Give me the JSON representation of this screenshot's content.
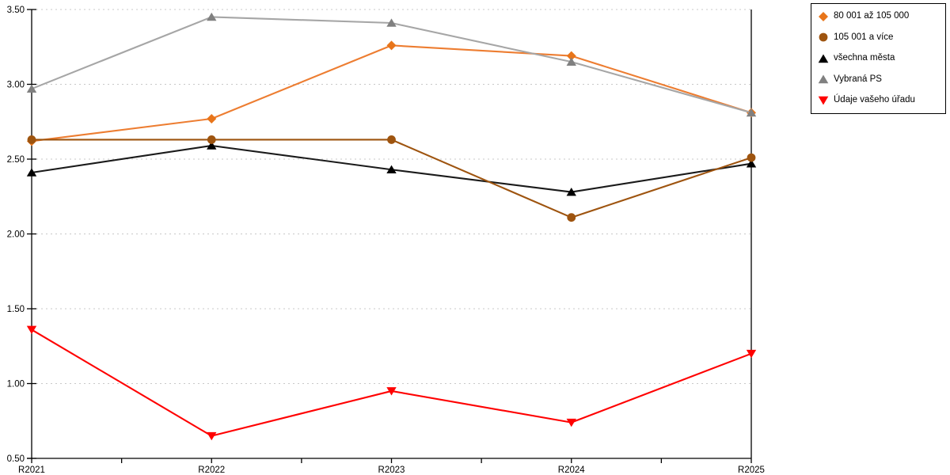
{
  "chart_data": {
    "type": "line",
    "categories": [
      "R2021",
      "R2022",
      "R2023",
      "R2024",
      "R2025"
    ],
    "series": [
      {
        "name": "80 001 až 105 000",
        "color": "#ED7D31",
        "marker_color": "#E8751A",
        "marker": "diamond",
        "values": [
          2.62,
          2.77,
          3.26,
          3.19,
          2.81
        ]
      },
      {
        "name": "105 001 a více",
        "color": "#9E540F",
        "marker_color": "#9E540F",
        "marker": "circle",
        "values": [
          2.63,
          2.63,
          2.63,
          2.11,
          2.51
        ]
      },
      {
        "name": "všechna města",
        "color": "#1A1A1A",
        "marker_color": "#000000",
        "marker": "triangle-up",
        "values": [
          2.41,
          2.59,
          2.43,
          2.28,
          2.47
        ]
      },
      {
        "name": "Vybraná PS",
        "color": "#A6A6A6",
        "marker_color": "#808080",
        "marker": "triangle-up",
        "values": [
          2.97,
          3.45,
          3.41,
          3.15,
          2.81
        ]
      },
      {
        "name": "Údaje vašeho úřadu",
        "color": "#FF0000",
        "marker_color": "#FF0000",
        "marker": "triangle-down",
        "values": [
          1.36,
          0.65,
          0.95,
          0.74,
          1.2
        ]
      }
    ],
    "y_axis": {
      "min": 0.5,
      "max": 3.5,
      "step": 0.5,
      "tick_labels": [
        "0.50",
        "1.00",
        "1.50",
        "2.00",
        "2.50",
        "3.00",
        "3.50"
      ]
    },
    "x_axis": {
      "tick_labels": [
        "R2021",
        "R2022",
        "R2023",
        "R2024",
        "R2025"
      ]
    },
    "title": "",
    "xlabel": "",
    "ylabel": "",
    "grid": "horizontal-dotted",
    "grid_color": "#C8C8C8",
    "axis_color": "#000000",
    "legend_position": "top-right"
  }
}
